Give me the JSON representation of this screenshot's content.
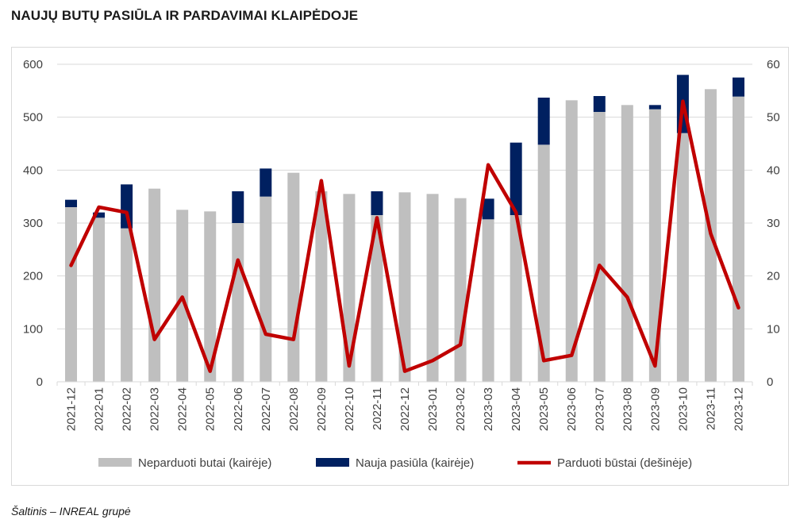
{
  "title": "NAUJŲ BUTŲ PASIŪLA IR PARDAVIMAI KLAIPĖDOJE",
  "source": "Šaltinis – INREAL grupė",
  "colors": {
    "unsold": "#bfbfbf",
    "new_supply": "#002060",
    "sold": "#c00000",
    "grid": "#d9d9d9",
    "text": "#404040"
  },
  "chart_data": {
    "type": "bar",
    "categories": [
      "2021-12",
      "2022-01",
      "2022-02",
      "2022-03",
      "2022-04",
      "2022-05",
      "2022-06",
      "2022-07",
      "2022-08",
      "2022-09",
      "2022-10",
      "2022-11",
      "2022-12",
      "2023-01",
      "2023-02",
      "2023-03",
      "2023-04",
      "2023-05",
      "2023-06",
      "2023-07",
      "2023-08",
      "2023-09",
      "2023-10",
      "2023-11",
      "2023-12"
    ],
    "y_left": {
      "lim": [
        0,
        600
      ],
      "ticks": [
        "0",
        "100",
        "200",
        "300",
        "400",
        "500",
        "600"
      ]
    },
    "y_right": {
      "lim": [
        0,
        60
      ],
      "ticks": [
        "0",
        "10",
        "20",
        "30",
        "40",
        "50",
        "60"
      ]
    },
    "grid": true,
    "legend_position": "bottom",
    "series": [
      {
        "name": "Neparduoti butai (kairėje)",
        "type": "stacked-bar",
        "axis": "left",
        "values": [
          330,
          310,
          290,
          365,
          325,
          322,
          300,
          350,
          395,
          360,
          355,
          315,
          358,
          355,
          347,
          307,
          315,
          448,
          532,
          510,
          523,
          515,
          470,
          553,
          539
        ]
      },
      {
        "name": "Nauja pasiūla (kairėje)",
        "type": "stacked-bar",
        "axis": "left",
        "values": [
          14,
          10,
          83,
          0,
          0,
          0,
          60,
          53,
          0,
          0,
          0,
          45,
          0,
          0,
          0,
          39,
          137,
          89,
          0,
          30,
          0,
          8,
          110,
          0,
          36
        ]
      },
      {
        "name": "Parduoti būstai (dešinėje)",
        "type": "line",
        "axis": "right",
        "values": [
          22,
          33,
          32,
          8,
          16,
          2,
          23,
          9,
          8,
          38,
          3,
          31,
          2,
          4,
          7,
          41,
          32,
          4,
          5,
          22,
          16,
          3,
          53,
          28,
          14
        ]
      }
    ]
  }
}
